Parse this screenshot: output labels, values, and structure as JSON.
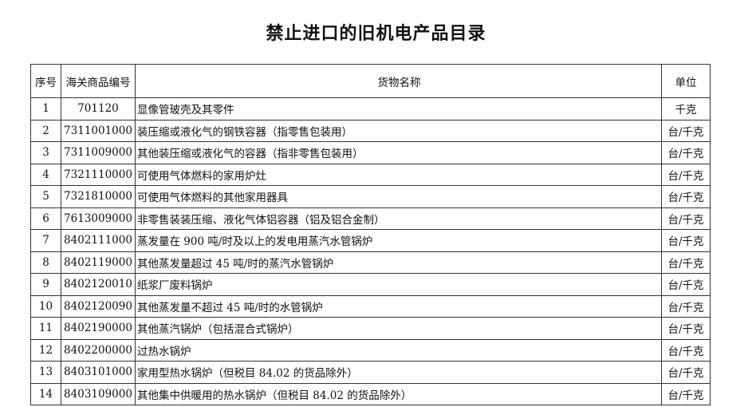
{
  "title": "禁止进口的旧机电产品目录",
  "headers": {
    "seq": "序号",
    "code": "海关商品编号",
    "name": "货物名称",
    "unit": "单位"
  },
  "rows": [
    {
      "seq": "1",
      "code": "701120",
      "name": "显像管玻壳及其零件",
      "unit": "千克"
    },
    {
      "seq": "2",
      "code": "7311001000",
      "name": "装压缩或液化气的钢铁容器（指零售包装用）",
      "unit": "台/千克"
    },
    {
      "seq": "3",
      "code": "7311009000",
      "name": "其他装压缩或液化气的容器（指非零售包装用）",
      "unit": "台/千克"
    },
    {
      "seq": "4",
      "code": "7321110000",
      "name": "可使用气体燃料的家用炉灶",
      "unit": "台/千克"
    },
    {
      "seq": "5",
      "code": "7321810000",
      "name": "可使用气体燃料的其他家用器具",
      "unit": "台/千克"
    },
    {
      "seq": "6",
      "code": "7613009000",
      "name": "非零售装装压缩、液化气体铝容器（铝及铝合金制）",
      "unit": "台/千克"
    },
    {
      "seq": "7",
      "code": "8402111000",
      "name": "蒸发量在 900 吨/时及以上的发电用蒸汽水管锅炉",
      "unit": "台/千克"
    },
    {
      "seq": "8",
      "code": "8402119000",
      "name": "其他蒸发量超过 45 吨/时的蒸汽水管锅炉",
      "unit": "台/千克"
    },
    {
      "seq": "9",
      "code": "8402120010",
      "name": "纸浆厂废料锅炉",
      "unit": "台/千克"
    },
    {
      "seq": "10",
      "code": "8402120090",
      "name": "其他蒸发量不超过 45 吨/时的水管锅炉",
      "unit": "台/千克"
    },
    {
      "seq": "11",
      "code": "8402190000",
      "name": "其他蒸汽锅炉（包括混合式锅炉）",
      "unit": "台/千克"
    },
    {
      "seq": "12",
      "code": "8402200000",
      "name": "过热水锅炉",
      "unit": "台/千克"
    },
    {
      "seq": "13",
      "code": "8403101000",
      "name": "家用型热水锅炉（但税目 84.02 的货品除外）",
      "unit": "台/千克"
    },
    {
      "seq": "14",
      "code": "8403109000",
      "name": "其他集中供暖用的热水锅炉（但税目 84.02 的货品除外）",
      "unit": "台/千克"
    }
  ]
}
